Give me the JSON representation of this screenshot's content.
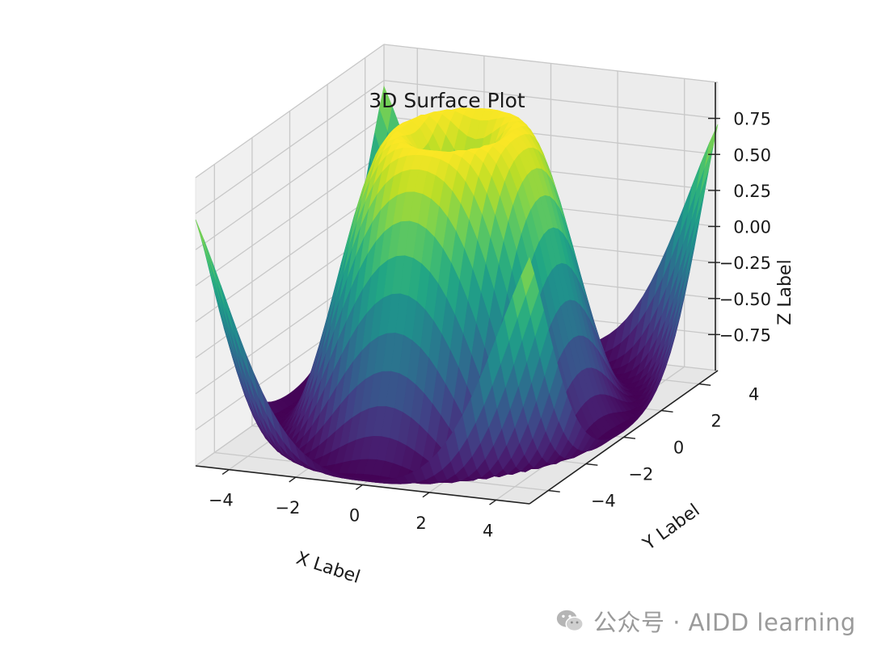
{
  "chart_data": {
    "type": "surface",
    "title": "3D Surface Plot",
    "xlabel": "X Label",
    "ylabel": "Y Label",
    "zlabel": "Z Label",
    "function": "z = sin(sqrt(x^2 + y^2))",
    "x_range": [
      -5,
      5
    ],
    "y_range": [
      -5,
      5
    ],
    "zlim": [
      -1,
      1
    ],
    "x_ticks": [
      -4,
      -2,
      0,
      2,
      4
    ],
    "y_ticks": [
      -4,
      -2,
      0,
      2,
      4
    ],
    "z_ticks": [
      0.75,
      0.5,
      0.25,
      0.0,
      -0.25,
      -0.5,
      -0.75
    ],
    "x_tick_labels": [
      "−4",
      "−2",
      "0",
      "2",
      "4"
    ],
    "y_tick_labels": [
      "−4",
      "−2",
      "0",
      "2",
      "4"
    ],
    "z_tick_labels": [
      "0.75",
      "0.50",
      "0.25",
      "0.00",
      "−0.25",
      "−0.50",
      "−0.75"
    ],
    "colormap": "viridis",
    "grid": true,
    "pane_color": "#f2f2f2",
    "grid_color": "#c8c8c8"
  },
  "watermark": {
    "icon": "wechat-icon",
    "text": "公众号 · AIDD learning"
  }
}
